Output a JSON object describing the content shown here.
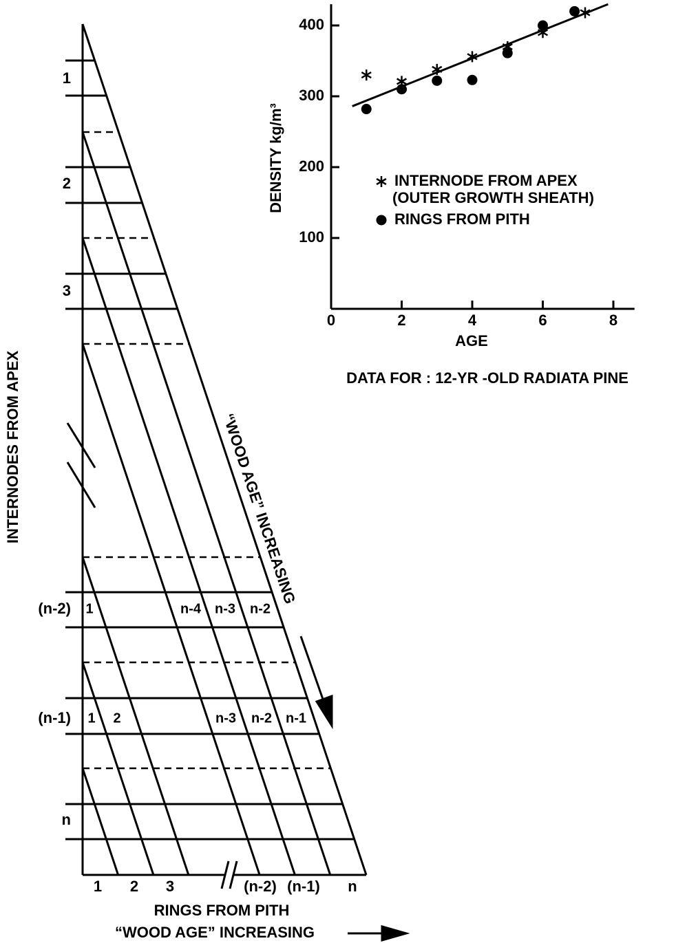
{
  "chart_data": {
    "type": "scatter",
    "x_label": "AGE",
    "y_label": "DENSITY kg/m³",
    "caption": "DATA FOR : 12-YR -OLD RADIATA PINE",
    "xlim": [
      0,
      8.6
    ],
    "xticks": [
      0,
      2,
      4,
      6,
      8
    ],
    "ylim": [
      0,
      430
    ],
    "yticks": [
      100,
      200,
      300,
      400
    ],
    "series": [
      {
        "name": "INTERNODE FROM APEX",
        "note": "(OUTER GROWTH SHEATH)",
        "marker": "star",
        "color": "#000000",
        "x": [
          1,
          2,
          3,
          4,
          5,
          6,
          7.2
        ],
        "values": [
          330,
          321,
          338,
          356,
          370,
          390,
          418
        ]
      },
      {
        "name": "RINGS FROM PITH",
        "marker": "dot",
        "color": "#000000",
        "x": [
          1,
          2,
          3,
          4,
          5,
          6,
          6.9
        ],
        "values": [
          282,
          310,
          322,
          323,
          361,
          400,
          420
        ]
      }
    ],
    "trend_line": {
      "x": [
        0.6,
        7.85
      ],
      "y": [
        286,
        430
      ]
    }
  },
  "diagram": {
    "y_axis_title": "INTERNODES FROM APEX",
    "x_axis_title": "RINGS FROM PITH",
    "bottom_caption": "“WOOD AGE” INCREASING",
    "diagonal_caption": "“WOOD AGE” INCREASING",
    "internode_labels": [
      "1",
      "2",
      "3",
      "(n-2)",
      "(n-1)",
      "n"
    ],
    "ring_labels": [
      "1",
      "2",
      "3",
      "(n-2)",
      "(n-1)",
      "n"
    ],
    "row_n2_cells": [
      "1",
      "n-4",
      "n-3",
      "n-2"
    ],
    "row_n1_cells": [
      "1",
      "2",
      "n-3",
      "n-2",
      "n-1"
    ]
  }
}
